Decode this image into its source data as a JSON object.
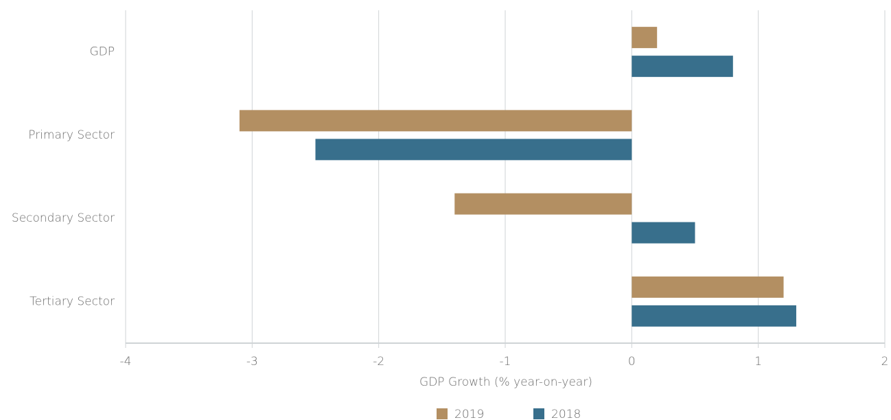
{
  "chart_data": {
    "type": "hbar",
    "categories": [
      "GDP",
      "Primary Sector",
      "Secondary Sector",
      "Tertiary Sector"
    ],
    "series": [
      {
        "name": "2019",
        "color": "#b38f62",
        "values": [
          0.2,
          -3.1,
          -1.4,
          1.2
        ]
      },
      {
        "name": "2018",
        "color": "#386f8c",
        "values": [
          0.8,
          -2.5,
          0.5,
          1.3
        ]
      }
    ],
    "xlabel": "GDP Growth (% year-on-year)",
    "xlim": [
      -4,
      2
    ],
    "xticks": [
      -4,
      -3,
      -2,
      -1,
      0,
      1,
      2
    ],
    "grid": true,
    "legend": "bottom"
  }
}
